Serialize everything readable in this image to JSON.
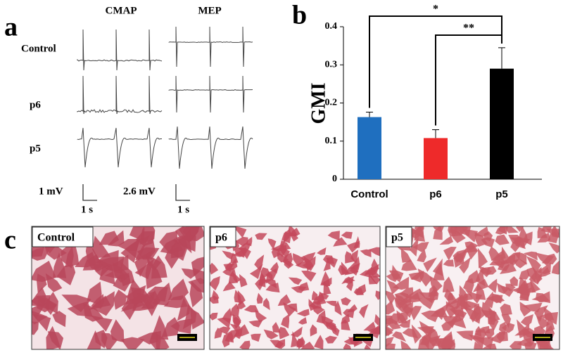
{
  "figure": {
    "panel_a": {
      "letter": "a",
      "columns": [
        "CMAP",
        "MEP"
      ],
      "rows": [
        "Control",
        "p6",
        "p5"
      ],
      "scales": [
        {
          "amplitude": "1 mV",
          "time": "1 s"
        },
        {
          "amplitude": "2.6 mV",
          "time": "1 s"
        }
      ]
    },
    "panel_c": {
      "letter": "c",
      "images": [
        "Control",
        "p6",
        "p5"
      ]
    }
  },
  "chart_data": {
    "type": "bar",
    "panel_letter": "b",
    "y_label": "GMI",
    "categories": [
      "Control",
      "p6",
      "p5"
    ],
    "values": [
      0.163,
      0.108,
      0.29
    ],
    "errors": [
      0.013,
      0.022,
      0.055
    ],
    "colors": [
      "#1f6fbf",
      "#ee2a2a",
      "#000000"
    ],
    "ylim": [
      0,
      0.4
    ],
    "yticks": [
      0,
      0.1,
      0.2,
      0.3,
      0.4
    ],
    "annotations": [
      "*",
      "**"
    ]
  }
}
